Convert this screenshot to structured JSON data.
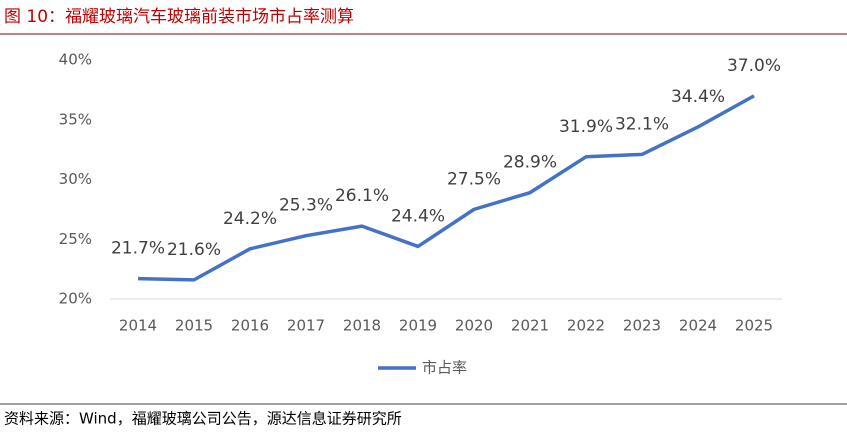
{
  "chart_data": {
    "type": "line",
    "title": "图 10：福耀玻璃汽车玻璃前装市场市占率测算",
    "categories": [
      "2014",
      "2015",
      "2016",
      "2017",
      "2018",
      "2019",
      "2020",
      "2021",
      "2022",
      "2023",
      "2024",
      "2025"
    ],
    "series": [
      {
        "name": "市占率",
        "color": "#4472c4",
        "values": [
          21.7,
          21.6,
          24.2,
          25.3,
          26.1,
          24.4,
          27.5,
          28.9,
          31.9,
          32.1,
          34.4,
          37.0
        ],
        "value_labels": [
          "21.7%",
          "21.6%",
          "24.2%",
          "25.3%",
          "26.1%",
          "24.4%",
          "27.5%",
          "28.9%",
          "31.9%",
          "32.1%",
          "34.4%",
          "37.0%"
        ]
      }
    ],
    "ylim": [
      20,
      40
    ],
    "yticks": [
      {
        "value": 20,
        "label": "20%"
      },
      {
        "value": 25,
        "label": "25%"
      },
      {
        "value": 30,
        "label": "30%"
      },
      {
        "value": 35,
        "label": "35%"
      },
      {
        "value": 40,
        "label": "40%"
      }
    ],
    "grid": false,
    "legend": "bottom",
    "source": "资料来源：Wind，福耀玻璃公司公告，源达信息证券研究所"
  }
}
